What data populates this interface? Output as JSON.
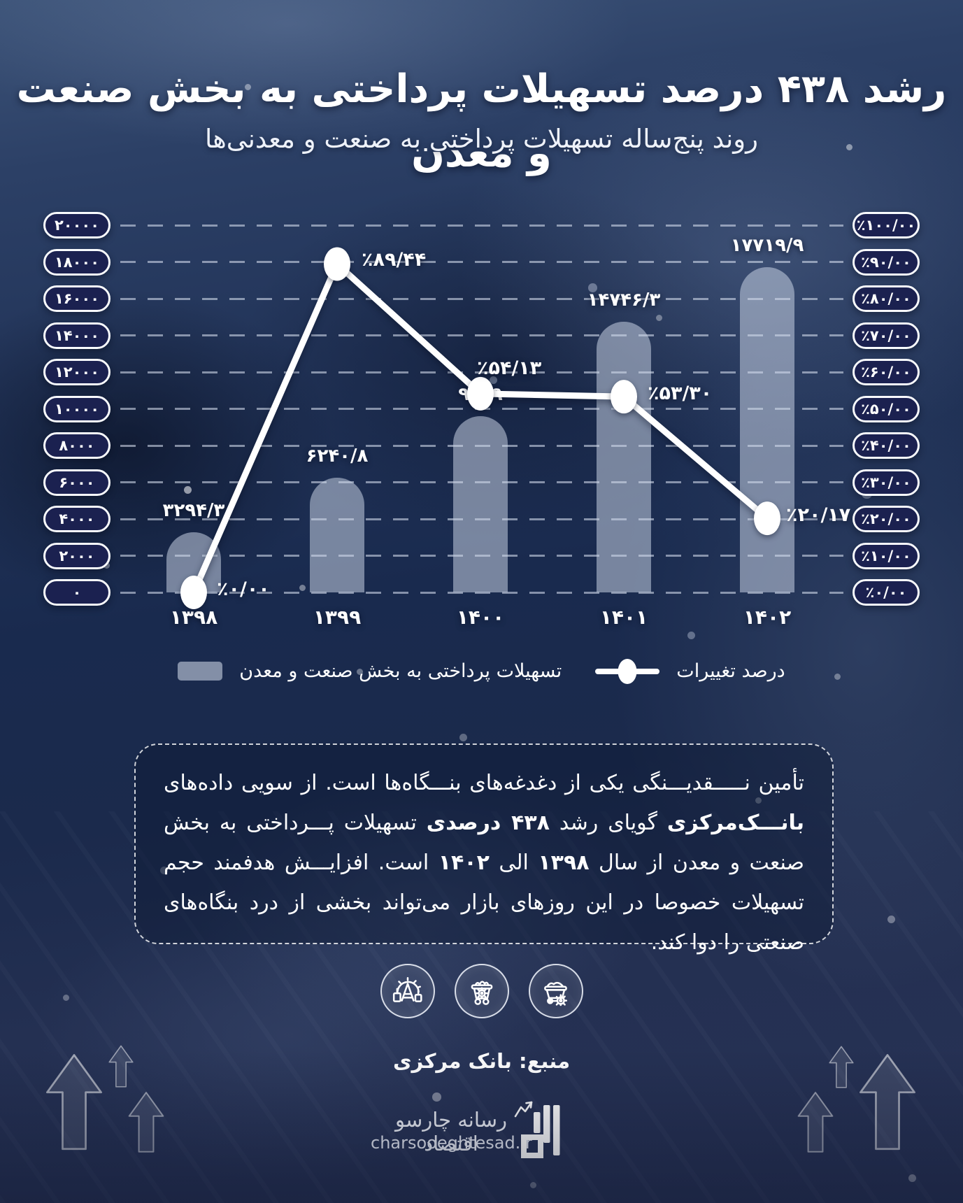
{
  "header": {
    "title": "رشد ۴۳۸ درصد تسهیلات پرداختی به بخش صنعت و معدن",
    "subtitle": "روند پنج‌ساله تسهیلات پرداختی به صنعت و معدنی‌ها"
  },
  "chart_data": {
    "type": "bar+line",
    "categories": [
      "۱۳۹۸",
      "۱۳۹۹",
      "۱۴۰۰",
      "۱۴۰۱",
      "۱۴۰۲"
    ],
    "series": [
      {
        "name": "تسهیلات پرداختی به بخش صنعت و معدن",
        "type": "bar",
        "values": [
          3294.3,
          6240.8,
          9619,
          14746.3,
          17719.9
        ],
        "labels": [
          "۳۲۹۴/۳",
          "۶۲۴۰/۸",
          "۹۶۱۹",
          "۱۴۷۴۶/۳",
          "۱۷۷۱۹/۹"
        ]
      },
      {
        "name": "درصد تغییرات",
        "type": "line",
        "values": [
          0,
          89.44,
          54.13,
          53.3,
          20.17
        ],
        "labels": [
          "٪۰/۰۰",
          "٪۸۹/۴۴",
          "٪۵۴/۱۳",
          "٪۵۳/۳۰",
          "٪۲۰/۱۷"
        ]
      }
    ],
    "left_axis": {
      "min": 0,
      "max": 20000,
      "ticks": [
        "۲۰۰۰۰",
        "۱۸۰۰۰",
        "۱۶۰۰۰",
        "۱۴۰۰۰",
        "۱۲۰۰۰",
        "۱۰۰۰۰",
        "۸۰۰۰",
        "۶۰۰۰",
        "۴۰۰۰",
        "۲۰۰۰",
        "۰"
      ]
    },
    "right_axis": {
      "min": 0,
      "max": 100,
      "ticks": [
        "٪۱۰۰/۰۰",
        "٪۹۰/۰۰",
        "٪۸۰/۰۰",
        "٪۷۰/۰۰",
        "٪۶۰/۰۰",
        "٪۵۰/۰۰",
        "٪۴۰/۰۰",
        "٪۳۰/۰۰",
        "٪۲۰/۰۰",
        "٪۱۰/۰۰",
        "٪۰/۰۰"
      ]
    },
    "grid": "dashed-horizontal",
    "legend_position": "bottom"
  },
  "legend": {
    "line_label": "درصد تغییرات",
    "bar_label": "تسهیلات پرداختی به بخش صنعت و معدن"
  },
  "story": {
    "t1": "تأمین نـــــقدیـــنگی یکی از دغدغه‌های بنـــگاه‌ها است. از سویی داده‌های ",
    "b1": "بانـــک‌مرکزی",
    "t2": " گویای رشد ",
    "b2": "۴۳۸ درصدی",
    "t3": " تسهیلات پـــرداختی به بخش صنعت و معدن از سال ",
    "b3": "۱۳۹۸",
    "t4": " الی ",
    "b4": "۱۴۰۲",
    "t5": " است. افزایـــش هدفمند حجم تسهیلات خصوصا در این روزهای بازار می‌تواند بخشی از درد بنگاه‌های صنعتی را دوا کند."
  },
  "icons": [
    "mining-rig-icon",
    "mine-cart-gear-icon",
    "ore-cart-icon"
  ],
  "footer": {
    "source": "منبع: بانک مرکزی"
  },
  "brand": {
    "fa": "رسانه چارسو اقتصاد",
    "en": "charsooeghtesad.ir"
  },
  "colors": {
    "pill_bg": "#1b2150",
    "pill_border": "#f8fafd",
    "bar_fill": "rgba(208,217,233,0.52)",
    "line": "#ffffff",
    "grid": "rgba(222,230,245,0.55)",
    "background": "#22305a"
  }
}
